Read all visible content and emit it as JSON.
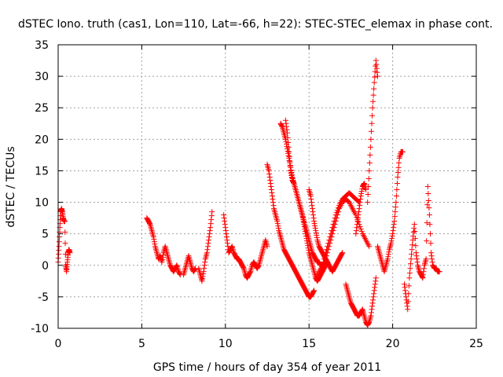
{
  "chart_data": {
    "type": "scatter",
    "title": "dSTEC Iono. truth (cas1, Lon=110, Lat=-66, h=22): STEC-STEC_elemax in phase cont.",
    "xlabel": "GPS time / hours of day 354 of year 2011",
    "ylabel": "dSTEC  / TECUs",
    "xlim": [
      0,
      25
    ],
    "ylim": [
      -10,
      35
    ],
    "xticks": [
      0,
      5,
      10,
      15,
      20,
      25
    ],
    "yticks": [
      -10,
      -5,
      0,
      5,
      10,
      15,
      20,
      25,
      30,
      35
    ],
    "grid": true,
    "legend": "none",
    "marker": "+",
    "color": "#ff0000",
    "series": [
      {
        "name": "",
        "segments": [
          {
            "x": [
              0.0,
              0.05,
              0.1,
              0.15,
              0.2,
              0.25,
              0.3,
              0.35,
              0.4,
              0.45,
              0.5,
              0.55,
              0.6,
              0.65,
              0.7
            ],
            "y": [
              0.5,
              3,
              6,
              8.5,
              9,
              8.5,
              7.5,
              7,
              7,
              0,
              -1,
              0.5,
              2,
              2.5,
              2
            ]
          },
          {
            "x": [
              5.3,
              5.4,
              5.5,
              5.6,
              5.7,
              5.8,
              5.9,
              6.0,
              6.1,
              6.2,
              6.3,
              6.4,
              6.5,
              6.6,
              6.7,
              6.8,
              6.9,
              7.0,
              7.1,
              7.2,
              7.3
            ],
            "y": [
              7.5,
              7,
              6.5,
              5.5,
              4.5,
              3,
              2,
              1,
              1.5,
              0.5,
              2,
              3,
              2,
              1,
              0,
              -0.5,
              -1,
              -0.5,
              0,
              -1,
              -1.5
            ]
          },
          {
            "x": [
              7.5,
              7.6,
              7.7,
              7.8,
              7.9,
              8.0,
              8.1,
              8.2
            ],
            "y": [
              -1.5,
              -0.5,
              0.5,
              1.5,
              0.5,
              -0.5,
              -1,
              -0.5
            ]
          },
          {
            "x": [
              8.4,
              8.5,
              8.6,
              8.7,
              8.8,
              8.9,
              9.0,
              9.1,
              9.2
            ],
            "y": [
              -0.5,
              -1.5,
              -2.5,
              -1,
              1,
              2,
              4,
              6,
              8.5
            ]
          },
          {
            "x": [
              9.9,
              10.0,
              10.1,
              10.2,
              10.3,
              10.4,
              10.5,
              10.6,
              10.7,
              10.8,
              10.9,
              11.0,
              11.1,
              11.2,
              11.3,
              11.4,
              11.5,
              11.6,
              11.7,
              11.8,
              11.9,
              12.0,
              12.1,
              12.2,
              12.3,
              12.4,
              12.5
            ],
            "y": [
              8,
              6,
              4,
              2,
              2.5,
              3,
              2,
              1.5,
              1,
              1,
              0.5,
              0,
              -0.5,
              -1.5,
              -2,
              -1.5,
              -1,
              0,
              0.5,
              0,
              -0.5,
              0,
              1,
              2,
              3,
              4,
              3
            ]
          },
          {
            "x": [
              12.5,
              12.6,
              12.7,
              12.8,
              12.9,
              13.0,
              13.1,
              13.2,
              13.3,
              13.4,
              13.5,
              13.6,
              13.7,
              13.8,
              13.9,
              14.0,
              14.1,
              14.2,
              14.3,
              14.4,
              14.5,
              14.6,
              14.7,
              14.8,
              14.9,
              15.0,
              15.1,
              15.2,
              15.3
            ],
            "y": [
              16,
              15,
              13,
              11,
              9,
              8,
              7,
              5.5,
              4.5,
              3.5,
              2.5,
              2,
              1.5,
              1,
              0.5,
              0,
              -0.5,
              -1,
              -1.5,
              -2,
              -2.5,
              -3,
              -3.5,
              -4,
              -4.5,
              -5,
              -5,
              -4.5,
              -4
            ]
          },
          {
            "x": [
              13.3,
              13.4,
              13.5,
              13.6,
              13.7,
              13.8,
              13.9,
              14.0,
              14.1,
              14.2,
              14.3,
              14.4,
              14.5,
              14.6,
              14.7,
              14.8,
              14.9,
              15.0,
              15.1,
              15.2,
              15.3,
              15.4,
              15.5,
              15.6,
              15.7,
              15.8,
              15.9,
              16.0,
              16.1
            ],
            "y": [
              22.5,
              22,
              21,
              20,
              18.5,
              17,
              15.5,
              14,
              13,
              12,
              11,
              10,
              9,
              8,
              7,
              6,
              5,
              4,
              3,
              2,
              1.5,
              1,
              0.5,
              0.5,
              0,
              0,
              0,
              0.5,
              0.5
            ]
          },
          {
            "x": [
              13.6,
              13.7,
              13.8,
              13.9,
              14.0,
              14.1,
              14.2,
              14.3,
              14.4,
              14.5,
              14.6,
              14.7,
              14.8,
              14.9,
              15.0,
              15.1,
              15.2,
              15.3,
              15.4,
              15.5,
              15.6,
              15.7,
              15.8,
              15.9,
              16.0
            ],
            "y": [
              23,
              21,
              18,
              15,
              13.5,
              13,
              12,
              11,
              10,
              9,
              8,
              6.5,
              5,
              3.5,
              2,
              1,
              0,
              -1,
              -2,
              -2.5,
              -2,
              -1.5,
              -1,
              -0.5,
              0
            ]
          },
          {
            "x": [
              15.0,
              15.1,
              15.2,
              15.3,
              15.4,
              15.5,
              15.6,
              15.7,
              15.8,
              15.9,
              16.0,
              16.1,
              16.2,
              16.3,
              16.4,
              16.5,
              16.6,
              16.7,
              16.8,
              16.9,
              17.0
            ],
            "y": [
              12,
              11,
              9,
              7,
              5.5,
              4,
              3,
              2.5,
              2,
              1.5,
              1,
              0.5,
              0,
              -0.5,
              -1,
              -0.5,
              0,
              0.5,
              1,
              1.5,
              2
            ]
          },
          {
            "x": [
              15.4,
              15.6,
              15.8,
              16.0,
              16.2,
              16.4,
              16.6,
              16.8,
              17.0,
              17.2,
              17.4,
              17.6,
              17.8,
              18.0
            ],
            "y": [
              -2,
              -1,
              0,
              2,
              4,
              6,
              8,
              9.5,
              10.5,
              11,
              11.5,
              11,
              10.5,
              10
            ]
          },
          {
            "x": [
              15.8,
              16.0,
              16.2,
              16.4,
              16.6,
              16.8,
              17.0,
              17.2,
              17.4,
              17.6,
              17.8,
              18.0,
              18.2,
              18.4,
              18.6
            ],
            "y": [
              -1,
              1,
              3,
              5,
              7,
              9,
              10,
              10.5,
              10,
              9,
              8,
              6.5,
              5,
              4,
              3
            ]
          },
          {
            "x": [
              17.2,
              17.3,
              17.4,
              17.5,
              17.6,
              17.7,
              17.8,
              17.9,
              18.0,
              18.1,
              18.2,
              18.3,
              18.4,
              18.5,
              18.6,
              18.7,
              18.8,
              18.9,
              19.0
            ],
            "y": [
              -3,
              -4,
              -5,
              -6,
              -6.5,
              -7,
              -7.5,
              -8,
              -8,
              -7.5,
              -7,
              -8,
              -9,
              -9.5,
              -9,
              -8,
              -6,
              -4,
              -2
            ]
          },
          {
            "x": [
              17.8,
              17.9,
              18.0,
              18.1,
              18.2,
              18.3,
              18.4
            ],
            "y": [
              5,
              7,
              9,
              11,
              12.5,
              13,
              12
            ]
          },
          {
            "x": [
              18.5,
              18.6,
              18.7,
              18.8,
              18.9,
              19.0,
              19.1
            ],
            "y": [
              10,
              15,
              20,
              25,
              29,
              32.5,
              30
            ]
          },
          {
            "x": [
              19.1,
              19.2,
              19.3,
              19.4,
              19.5,
              19.6,
              19.7,
              19.8,
              19.9,
              20.0,
              20.1,
              20.2,
              20.3,
              20.4,
              20.5,
              20.6
            ],
            "y": [
              3,
              2,
              1,
              0,
              -1,
              0,
              1,
              2.5,
              3.5,
              5,
              7,
              10,
              14,
              17,
              18,
              18
            ]
          },
          {
            "x": [
              20.7,
              20.8,
              20.9,
              21.0,
              21.1,
              21.2,
              21.3,
              21.4,
              21.5,
              21.6,
              21.7,
              21.8,
              21.9,
              22.0,
              22.1,
              22.2,
              22.3,
              22.4,
              22.5,
              22.6,
              22.7,
              22.8
            ],
            "y": [
              -3,
              -5,
              -7,
              -2,
              1,
              4,
              6.5,
              2,
              0,
              -1,
              -1.5,
              -2,
              0,
              1,
              12.5,
              8,
              2,
              0,
              -0.5,
              -0.5,
              -1,
              -1
            ]
          }
        ]
      }
    ]
  }
}
